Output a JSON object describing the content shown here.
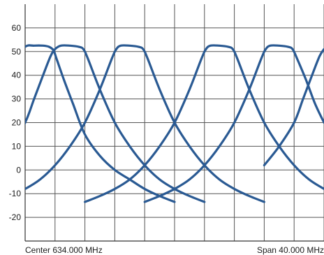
{
  "chart_data": {
    "type": "line",
    "footer": {
      "center_label": "Center 634.000 MHz",
      "span_label": "Span 40.000 MHz"
    },
    "ylim": [
      -30,
      70
    ],
    "y_ticks": [
      -20,
      -10,
      0,
      10,
      20,
      30,
      40,
      50,
      60
    ],
    "x_divisions": 10,
    "grid": true,
    "colors": {
      "trace": "#2a5a93",
      "grid": "#555555",
      "axis": "#333333",
      "background": "#ffffff"
    },
    "series": [
      {
        "center_div": 0.0,
        "points": [
          [
            -0.35,
            46
          ],
          [
            0.0,
            52
          ],
          [
            0.3,
            52.5
          ],
          [
            0.6,
            52.5
          ],
          [
            0.8,
            52
          ],
          [
            0.95,
            50.5
          ],
          [
            1.05,
            47
          ],
          [
            1.3,
            38
          ],
          [
            1.6,
            28
          ],
          [
            2.0,
            15
          ],
          [
            2.5,
            6
          ],
          [
            3.0,
            0
          ],
          [
            3.5,
            -4
          ],
          [
            4.0,
            -8
          ],
          [
            4.5,
            -11
          ],
          [
            5.0,
            -13.5
          ]
        ]
      },
      {
        "center_div": 2.0,
        "points": [
          [
            -1.05,
            2.5
          ],
          [
            -0.5,
            9
          ],
          [
            0.0,
            20
          ],
          [
            0.3,
            30
          ],
          [
            0.6,
            40
          ],
          [
            0.85,
            48
          ],
          [
            1.0,
            51
          ],
          [
            1.2,
            52.5
          ],
          [
            1.5,
            52.5
          ],
          [
            1.8,
            52
          ],
          [
            1.95,
            51
          ],
          [
            2.1,
            47
          ],
          [
            2.5,
            34
          ],
          [
            3.0,
            20
          ],
          [
            3.5,
            10
          ],
          [
            4.0,
            2
          ],
          [
            4.5,
            -4
          ],
          [
            5.0,
            -8
          ],
          [
            5.5,
            -11
          ],
          [
            6.0,
            -13.5
          ]
        ]
      },
      {
        "center_div": 4.0,
        "points": [
          [
            -1.0,
            -13.5
          ],
          [
            -0.5,
            -11
          ],
          [
            0.0,
            -8
          ],
          [
            0.5,
            -4
          ],
          [
            1.0,
            2
          ],
          [
            1.5,
            10
          ],
          [
            2.0,
            20
          ],
          [
            2.5,
            34
          ],
          [
            2.9,
            47
          ],
          [
            3.05,
            51
          ],
          [
            3.2,
            52.5
          ],
          [
            3.5,
            52.5
          ],
          [
            3.8,
            52
          ],
          [
            3.95,
            51
          ],
          [
            4.1,
            47
          ],
          [
            4.5,
            34
          ],
          [
            5.0,
            20
          ],
          [
            5.5,
            10
          ],
          [
            6.0,
            2
          ],
          [
            6.5,
            -4
          ],
          [
            7.0,
            -8
          ],
          [
            7.5,
            -11
          ],
          [
            8.0,
            -13.5
          ]
        ]
      },
      {
        "center_div": 6.0,
        "points": [
          [
            2.0,
            -13.5
          ],
          [
            2.5,
            -11
          ],
          [
            3.0,
            -8
          ],
          [
            3.5,
            -4
          ],
          [
            4.0,
            2
          ],
          [
            4.5,
            10
          ],
          [
            5.0,
            20
          ],
          [
            5.5,
            34
          ],
          [
            5.9,
            47
          ],
          [
            6.05,
            51
          ],
          [
            6.2,
            52.5
          ],
          [
            6.5,
            52.5
          ],
          [
            6.8,
            52
          ],
          [
            6.95,
            51
          ],
          [
            7.1,
            47
          ],
          [
            7.5,
            34
          ],
          [
            8.0,
            20
          ],
          [
            8.5,
            10
          ],
          [
            9.0,
            2
          ],
          [
            9.5,
            -4
          ],
          [
            10.0,
            -8
          ]
        ]
      },
      {
        "center_div": 8.0,
        "points": [
          [
            4.0,
            -13.5
          ],
          [
            4.5,
            -11
          ],
          [
            5.0,
            -8
          ],
          [
            5.5,
            -4
          ],
          [
            6.0,
            2
          ],
          [
            6.5,
            10
          ],
          [
            7.0,
            20
          ],
          [
            7.5,
            34
          ],
          [
            7.9,
            47
          ],
          [
            8.05,
            51
          ],
          [
            8.2,
            52.5
          ],
          [
            8.5,
            52.5
          ],
          [
            8.8,
            52
          ],
          [
            8.95,
            51
          ],
          [
            9.1,
            47
          ],
          [
            9.4,
            38
          ],
          [
            9.7,
            28
          ],
          [
            10.0,
            20
          ]
        ]
      },
      {
        "center_div": 10.0,
        "points": [
          [
            8.0,
            2
          ],
          [
            8.5,
            10
          ],
          [
            9.0,
            20
          ],
          [
            9.3,
            30
          ],
          [
            9.6,
            40
          ],
          [
            9.85,
            48
          ],
          [
            10.0,
            51
          ]
        ]
      }
    ]
  }
}
